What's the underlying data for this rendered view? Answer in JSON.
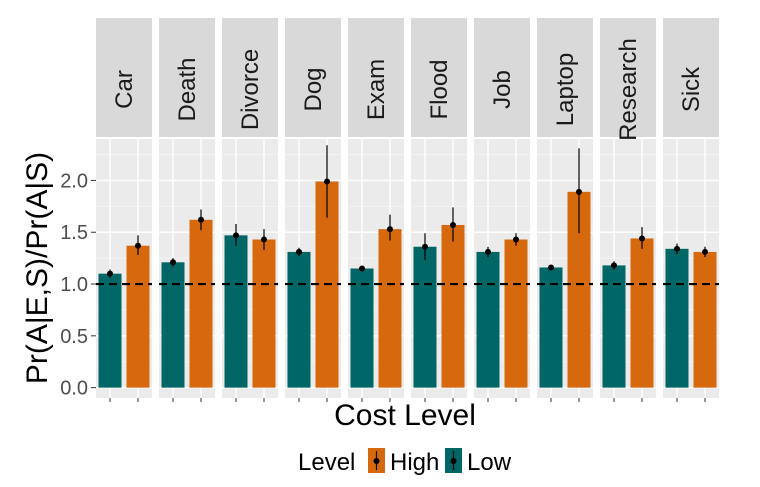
{
  "chart_data": {
    "type": "bar",
    "title": "",
    "xlabel": "Cost Level",
    "ylabel": "Pr(A|E,S)/Pr(A|S)",
    "ylim": [
      -0.1,
      2.4
    ],
    "yticks": [
      "0.0",
      "0.5",
      "1.0",
      "1.5",
      "2.0"
    ],
    "reference_line": 1.0,
    "grid": true,
    "legend": {
      "title": "Level",
      "position": "bottom",
      "entries": [
        {
          "name": "High",
          "color": "#D6690E"
        },
        {
          "name": "Low",
          "color": "#006666"
        }
      ]
    },
    "facets": [
      "Car",
      "Death",
      "Divorce",
      "Dog",
      "Exam",
      "Flood",
      "Job",
      "Laptop",
      "Research",
      "Sick"
    ],
    "series": [
      {
        "name": "Low",
        "color": "#006666",
        "values": [
          1.1,
          1.21,
          1.47,
          1.31,
          1.15,
          1.36,
          1.31,
          1.16,
          1.18,
          1.34
        ],
        "err_low": [
          1.06,
          1.17,
          1.37,
          1.27,
          1.13,
          1.23,
          1.26,
          1.14,
          1.14,
          1.29
        ],
        "err_high": [
          1.14,
          1.25,
          1.58,
          1.35,
          1.17,
          1.49,
          1.36,
          1.18,
          1.22,
          1.39
        ]
      },
      {
        "name": "High",
        "color": "#D6690E",
        "values": [
          1.37,
          1.62,
          1.43,
          1.99,
          1.53,
          1.57,
          1.43,
          1.89,
          1.44,
          1.31
        ],
        "err_low": [
          1.28,
          1.52,
          1.33,
          1.64,
          1.42,
          1.41,
          1.37,
          1.49,
          1.34,
          1.26
        ],
        "err_high": [
          1.47,
          1.72,
          1.53,
          2.34,
          1.67,
          1.74,
          1.49,
          2.31,
          1.55,
          1.36
        ]
      }
    ]
  }
}
